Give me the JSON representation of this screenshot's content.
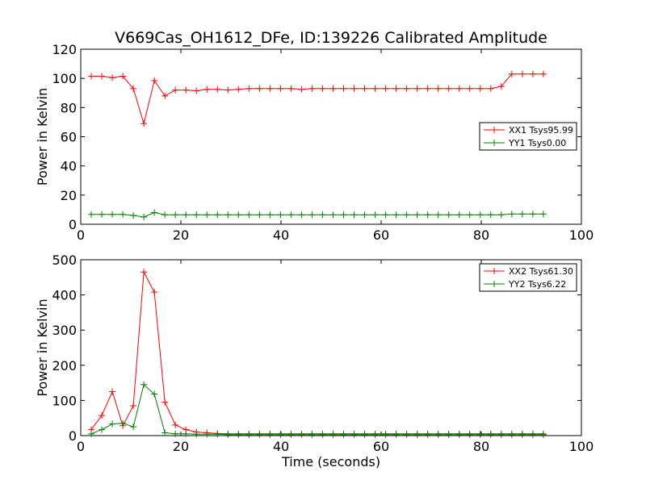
{
  "chart_data": [
    {
      "type": "line",
      "title": "V669Cas_OH1612_DFe, ID:139226 Calibrated Amplitude",
      "xlabel": "",
      "ylabel": "Power in Kelvin",
      "xlim": [
        0,
        100
      ],
      "ylim": [
        0,
        120
      ],
      "xticks": [
        0,
        20,
        40,
        60,
        80,
        100
      ],
      "yticks": [
        0,
        20,
        40,
        60,
        80,
        100,
        120
      ],
      "grid": false,
      "legend_position": "center-right",
      "series": [
        {
          "name": "XX1 Tsys95.99",
          "color": "#ff0000",
          "x": [
            2.1,
            4.2,
            6.3,
            8.4,
            10.5,
            12.6,
            14.7,
            16.8,
            18.9,
            21,
            23.1,
            25.2,
            27.3,
            29.4,
            31.5,
            33.6,
            35.7,
            37.8,
            39.9,
            42,
            44.1,
            46.2,
            48.3,
            50.4,
            52.5,
            54.6,
            56.7,
            58.8,
            60.9,
            63,
            65.1,
            67.2,
            69.3,
            71.4,
            73.5,
            75.6,
            77.7,
            79.8,
            81.9,
            84,
            86.1,
            88.2,
            90.3,
            92.4
          ],
          "y": [
            101.5,
            101.5,
            100.5,
            101.5,
            93,
            69,
            98.5,
            88,
            92,
            92,
            91.5,
            92.5,
            92.5,
            92,
            92.5,
            93,
            93,
            93,
            93,
            93,
            92.5,
            93,
            93,
            93,
            93,
            93,
            93,
            93,
            93,
            93,
            93,
            93,
            93,
            93,
            93,
            93,
            93,
            93,
            93,
            94.5,
            103,
            103,
            103,
            103
          ]
        },
        {
          "name": "YY1 Tsys0.00",
          "color": "#008000",
          "x": [
            2.1,
            4.2,
            6.3,
            8.4,
            10.5,
            12.6,
            14.7,
            16.8,
            18.9,
            21,
            23.1,
            25.2,
            27.3,
            29.4,
            31.5,
            33.6,
            35.7,
            37.8,
            39.9,
            42,
            44.1,
            46.2,
            48.3,
            50.4,
            52.5,
            54.6,
            56.7,
            58.8,
            60.9,
            63,
            65.1,
            67.2,
            69.3,
            71.4,
            73.5,
            75.6,
            77.7,
            79.8,
            81.9,
            84,
            86.1,
            88.2,
            90.3,
            92.4
          ],
          "y": [
            6.8,
            6.8,
            6.8,
            6.8,
            6,
            5,
            8,
            6.5,
            6.5,
            6.5,
            6.5,
            6.5,
            6.5,
            6.5,
            6.5,
            6.5,
            6.5,
            6.5,
            6.5,
            6.5,
            6.5,
            6.5,
            6.5,
            6.5,
            6.5,
            6.5,
            6.5,
            6.5,
            6.5,
            6.5,
            6.5,
            6.5,
            6.5,
            6.5,
            6.5,
            6.5,
            6.5,
            6.5,
            6.5,
            6.5,
            7,
            7,
            7,
            7
          ]
        }
      ]
    },
    {
      "type": "line",
      "title": "",
      "xlabel": "Time (seconds)",
      "ylabel": "Power in Kelvin",
      "xlim": [
        0,
        100
      ],
      "ylim": [
        0,
        500
      ],
      "xticks": [
        0,
        20,
        40,
        60,
        80,
        100
      ],
      "yticks": [
        0,
        100,
        200,
        300,
        400,
        500
      ],
      "grid": false,
      "legend_position": "top-right",
      "series": [
        {
          "name": "XX2 Tsys61.30",
          "color": "#ff0000",
          "x": [
            2.1,
            4.2,
            6.3,
            8.4,
            10.5,
            12.6,
            14.7,
            16.8,
            18.9,
            21,
            23.1,
            25.2,
            27.3,
            29.4,
            31.5,
            33.6,
            35.7,
            37.8,
            39.9,
            42,
            44.1,
            46.2,
            48.3,
            50.4,
            52.5,
            54.6,
            56.7,
            58.8,
            60.9,
            63,
            65.1,
            67.2,
            69.3,
            71.4,
            73.5,
            75.6,
            77.7,
            79.8,
            81.9,
            84,
            86.1,
            88.2,
            90.3,
            92.4
          ],
          "y": [
            17,
            57,
            125,
            28,
            85,
            465,
            408,
            95,
            30,
            17,
            10,
            8,
            6,
            5,
            5,
            5,
            5,
            5,
            5,
            5,
            5,
            5,
            5,
            5,
            5,
            5,
            5,
            5,
            5,
            5,
            5,
            5,
            5,
            5,
            5,
            5,
            5,
            5,
            5,
            5,
            5,
            5,
            5,
            5
          ]
        },
        {
          "name": "YY2 Tsys6.22",
          "color": "#008000",
          "x": [
            2.1,
            4.2,
            6.3,
            8.4,
            10.5,
            12.6,
            14.7,
            16.8,
            18.9,
            21,
            23.1,
            25.2,
            27.3,
            29.4,
            31.5,
            33.6,
            35.7,
            37.8,
            39.9,
            42,
            44.1,
            46.2,
            48.3,
            50.4,
            52.5,
            54.6,
            56.7,
            58.8,
            60.9,
            63,
            65.1,
            67.2,
            69.3,
            71.4,
            73.5,
            75.6,
            77.7,
            79.8,
            81.9,
            84,
            86.1,
            88.2,
            90.3,
            92.4
          ],
          "y": [
            5,
            17,
            33,
            35,
            25,
            145,
            118,
            8,
            5,
            5,
            4,
            4,
            4,
            3,
            3,
            3,
            3,
            3,
            3,
            3,
            3,
            3,
            3,
            3,
            3,
            3,
            3,
            3,
            3,
            3,
            3,
            3,
            3,
            3,
            3,
            3,
            3,
            3,
            3,
            3,
            3,
            3,
            3,
            3
          ]
        }
      ]
    }
  ]
}
